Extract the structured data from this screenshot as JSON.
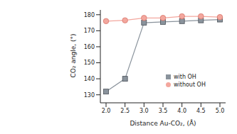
{
  "chart_data": {
    "type": "line",
    "x_label": "Distance Au-CO₂, (Å)",
    "y_label": "CO₂ angle, (°)",
    "x": [
      2.0,
      2.5,
      3.0,
      3.5,
      4.0,
      4.5,
      5.0
    ],
    "series": [
      {
        "name": "with OH",
        "color": "#8a939c",
        "marker": "square",
        "values": [
          132,
          140,
          175,
          175.5,
          176,
          176.5,
          177
        ]
      },
      {
        "name": "without OH",
        "color": "#f3a79e",
        "marker": "circle",
        "values": [
          176,
          176.5,
          178,
          178,
          179,
          179,
          178.5
        ]
      }
    ],
    "xlim": [
      1.85,
      5.15
    ],
    "ylim": [
      125,
      183
    ],
    "xticks": [
      {
        "value": 2,
        "label": "2.0"
      },
      2.5,
      {
        "value": 3,
        "label": "3.0"
      },
      3.5,
      {
        "value": 4,
        "label": "4.0"
      },
      4.5,
      {
        "value": 5,
        "label": "5.0"
      }
    ],
    "yticks": [
      130,
      140,
      150,
      160,
      170,
      180
    ],
    "legend": "lower right"
  }
}
